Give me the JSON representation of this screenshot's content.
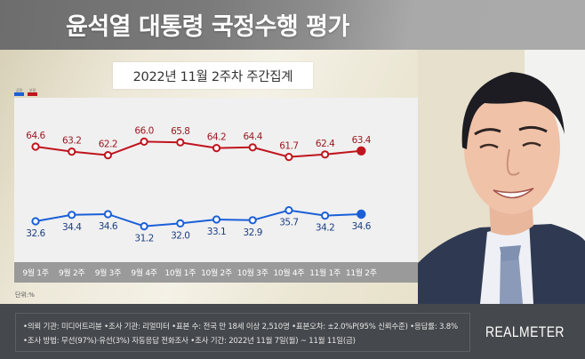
{
  "header": {
    "title": "윤석열 대통령 국정수행 평가"
  },
  "subtitle": "2022년 11월 2주차 주간집계",
  "legend": [
    {
      "label": "긍정",
      "color": "#1a5fd8"
    },
    {
      "label": "부정",
      "color": "#c0141e"
    }
  ],
  "unit_label": "단위:%",
  "footer": {
    "line1": "•의뢰 기관: 미디어트리뷴 •조사 기관: 리얼미터 •표본 수: 전국 만 18세 이상 2,510명 •표본오차: ±2.0%P(95% 신뢰수준) •응답률: 3.8%",
    "line2": "•조사 방법: 무선(97%)·유선(3%) 자동응답 전화조사 •조사 기간: 2022년 11월 7일(월) ~ 11월 11일(금)",
    "brand": "REALMETER"
  },
  "colors": {
    "positive": "#1a5fd8",
    "negative": "#c0141e",
    "axis_bar": "#9a9a9a",
    "chart_bg": "#f0f0f0"
  },
  "chart_data": {
    "type": "line",
    "title": "윤석열 대통령 국정수행 평가",
    "subtitle": "2022년 11월 2주차 주간집계",
    "xlabel": "",
    "ylabel": "단위:%",
    "categories": [
      "9월 1주",
      "9월 2주",
      "9월 3주",
      "9월 4주",
      "10월 1주",
      "10월 2주",
      "10월 3주",
      "10월 4주",
      "11월 1주",
      "11월 2주"
    ],
    "series": [
      {
        "name": "부정",
        "color": "#c0141e",
        "values": [
          64.6,
          63.2,
          62.2,
          66.0,
          65.8,
          64.2,
          64.4,
          61.7,
          62.4,
          63.4
        ]
      },
      {
        "name": "긍정",
        "color": "#1a5fd8",
        "values": [
          32.6,
          34.4,
          34.6,
          31.2,
          32.0,
          33.1,
          32.9,
          35.7,
          34.2,
          34.6
        ]
      }
    ],
    "grid": false,
    "legend_position": "top-left"
  }
}
